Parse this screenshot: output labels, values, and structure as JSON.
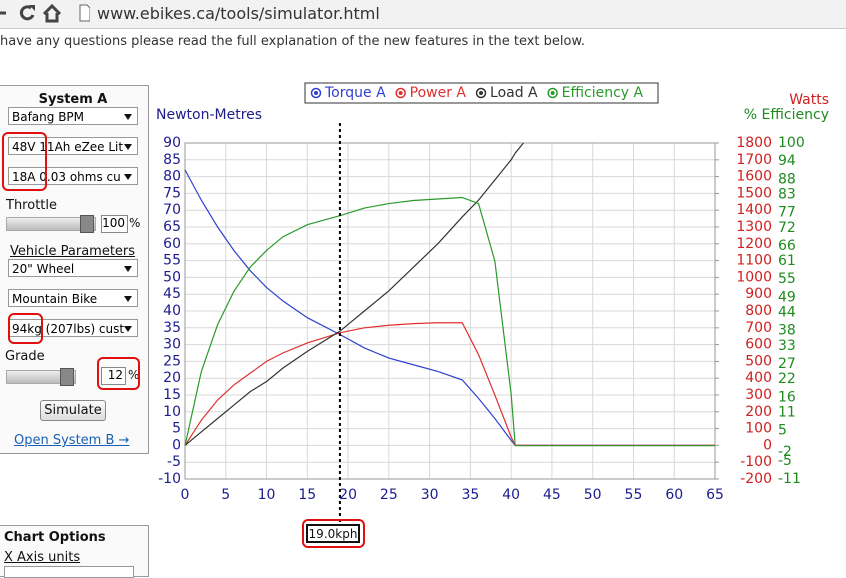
{
  "browser": {
    "url": "www.ebikes.ca/tools/simulator.html"
  },
  "notice": "have any questions please read the full explanation of the new features in the text below.",
  "system_panel": {
    "title": "System A",
    "motor": "Bafang BPM",
    "battery": "48V 11Ah eZee Lit",
    "controller": "18A 0.03 ohms cu",
    "throttle_label": "Throttle",
    "throttle_value": 100,
    "throttle_unit": "%",
    "vehicle_heading": "Vehicle Parameters",
    "wheel": "20\" Wheel",
    "bike_type": "Mountain Bike",
    "mass": "94kg (207lbs) cust",
    "grade_label": "Grade",
    "grade_value": 12,
    "grade_unit": "%",
    "simulate_button": "Simulate",
    "open_system_b": "Open System B →"
  },
  "chart_options": {
    "title": "Chart Options",
    "x_axis_units": "X Axis units"
  },
  "chart_data": {
    "type": "line",
    "y_label": "Newton-Metres",
    "y2_label": "Watts",
    "y3_label": "% Efficiency",
    "x": [
      0,
      2,
      4,
      6,
      8,
      10,
      12,
      15,
      19,
      22,
      25,
      28,
      31,
      34,
      36,
      38,
      40,
      40.5,
      41.5,
      45,
      50,
      55,
      60,
      65
    ],
    "series": [
      {
        "name": "Torque A",
        "color": "#3040d0",
        "values": [
          82,
          73,
          65,
          58,
          52,
          47,
          43,
          38,
          33,
          29,
          26,
          24,
          22,
          19.5,
          14,
          8,
          1.5,
          0,
          0,
          0,
          0,
          0,
          0,
          0
        ]
      },
      {
        "name": "Power A",
        "color": "#e03030",
        "axis": "y2",
        "values": [
          0,
          150,
          270,
          360,
          430,
          500,
          550,
          610,
          670,
          700,
          715,
          725,
          730,
          730,
          540,
          300,
          50,
          0,
          0,
          0,
          0,
          0,
          0,
          0
        ]
      },
      {
        "name": "Load A",
        "color": "#333333",
        "axis": "y2",
        "values": [
          0,
          80,
          160,
          240,
          320,
          380,
          460,
          560,
          680,
          800,
          920,
          1060,
          1200,
          1360,
          1460,
          1580,
          1700,
          1740,
          1800,
          null,
          null,
          null,
          null,
          null
        ]
      },
      {
        "name": "Efficiency A",
        "color": "#2a9a2a",
        "axis": "y3",
        "values": [
          0,
          24.5,
          40,
          51,
          59,
          64.5,
          69,
          73,
          76,
          78.5,
          80,
          81,
          81.5,
          82,
          80,
          61,
          17,
          0,
          0,
          0,
          0,
          0,
          0,
          0
        ]
      }
    ],
    "xlim": [
      0,
      65
    ],
    "xticks": [
      0,
      5,
      10,
      15,
      20,
      25,
      30,
      35,
      40,
      45,
      50,
      55,
      60,
      65
    ],
    "ylim": [
      -10,
      90
    ],
    "yticks": [
      -10,
      -5,
      0,
      5,
      10,
      15,
      20,
      25,
      30,
      35,
      40,
      45,
      50,
      55,
      60,
      65,
      70,
      75,
      80,
      85,
      90
    ],
    "y2lim": [
      -200,
      1800
    ],
    "y2ticks": [
      -200,
      -100,
      0,
      100,
      200,
      300,
      400,
      500,
      600,
      700,
      800,
      900,
      1000,
      1100,
      1200,
      1300,
      1400,
      1500,
      1600,
      1700,
      1800
    ],
    "y3lim": [
      -11,
      100
    ],
    "y3ticks": [
      -11,
      -5,
      -2,
      5,
      11,
      16,
      22,
      27,
      33,
      38,
      44,
      49,
      55,
      61,
      66,
      72,
      77,
      83,
      88,
      94,
      100
    ],
    "grid": true,
    "cursor": {
      "value": 19,
      "label": "19.0kph"
    }
  }
}
